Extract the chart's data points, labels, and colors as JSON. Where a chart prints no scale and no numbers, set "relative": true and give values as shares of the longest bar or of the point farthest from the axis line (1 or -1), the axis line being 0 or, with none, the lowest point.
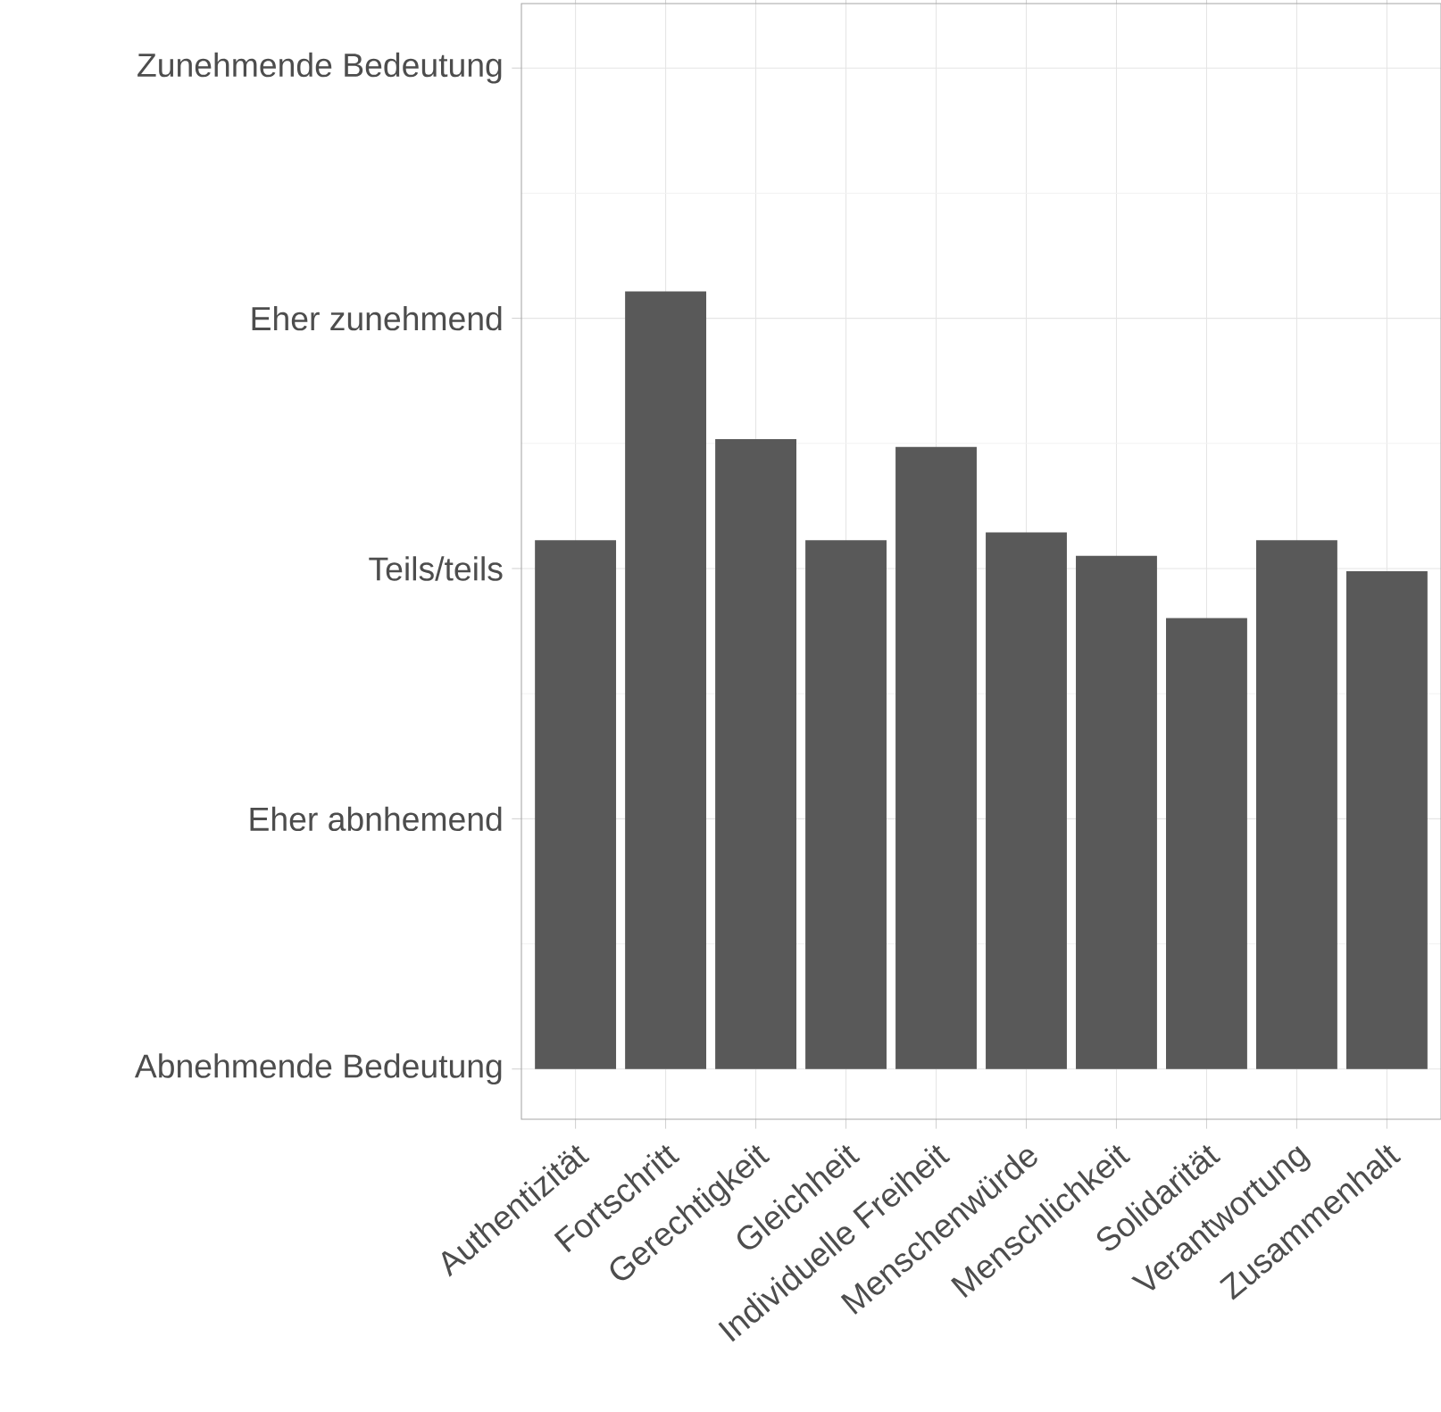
{
  "chart_data": {
    "type": "bar",
    "categories": [
      "Authentizität",
      "Fortschritt",
      "Gerechtigkeit",
      "Gleichheit",
      "Individuelle Freiheit",
      "Menschenwürde",
      "Menschlichkeit",
      "Solidarität",
      "Verantwortung",
      "Zusammenhalt"
    ],
    "values": [
      0.68,
      1,
      0.81,
      0.68,
      0.8,
      0.69,
      0.66,
      0.58,
      0.68,
      0.64
    ],
    "relative": true,
    "color": "#595959",
    "annotations": [
      "Abnehmende Bedeutung",
      "Eher abnhemend",
      "Teils/teils",
      "Eher zunehmend",
      "Zunehmende Bedeutung"
    ],
    "grid": true
  }
}
